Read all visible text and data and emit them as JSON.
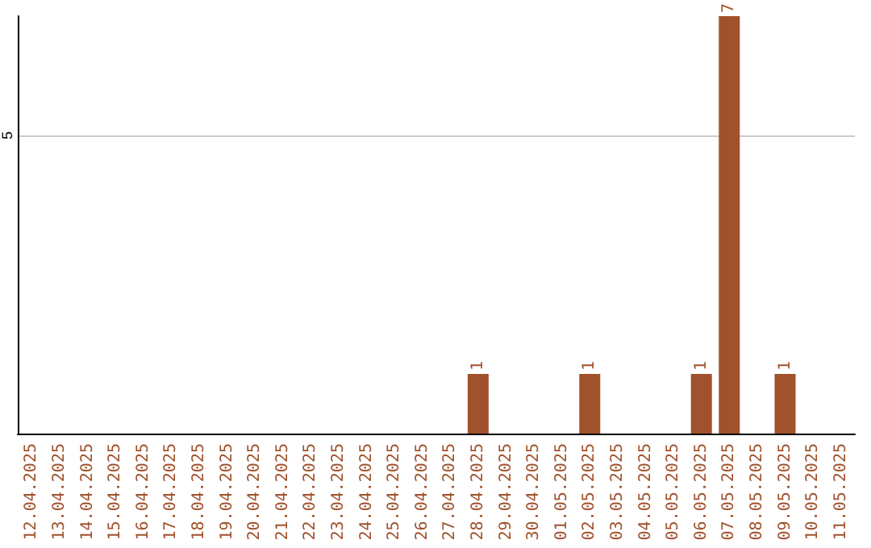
{
  "chart_data": {
    "type": "bar",
    "categories": [
      "12.04.2025",
      "13.04.2025",
      "14.04.2025",
      "15.04.2025",
      "16.04.2025",
      "17.04.2025",
      "18.04.2025",
      "19.04.2025",
      "20.04.2025",
      "21.04.2025",
      "22.04.2025",
      "23.04.2025",
      "24.04.2025",
      "25.04.2025",
      "26.04.2025",
      "27.04.2025",
      "28.04.2025",
      "29.04.2025",
      "30.04.2025",
      "01.05.2025",
      "02.05.2025",
      "03.05.2025",
      "04.05.2025",
      "05.05.2025",
      "06.05.2025",
      "07.05.2025",
      "08.05.2025",
      "09.05.2025",
      "10.05.2025",
      "11.05.2025"
    ],
    "values": [
      null,
      null,
      null,
      null,
      null,
      null,
      null,
      null,
      null,
      null,
      null,
      null,
      null,
      null,
      null,
      null,
      1,
      null,
      null,
      null,
      1,
      null,
      null,
      null,
      1,
      7,
      null,
      1,
      null,
      null
    ],
    "data_labels": true,
    "color": "#a0522d",
    "ylim": [
      0,
      7
    ],
    "yticks": [
      {
        "value": 0,
        "label": null
      },
      5
    ],
    "grid": "y"
  }
}
